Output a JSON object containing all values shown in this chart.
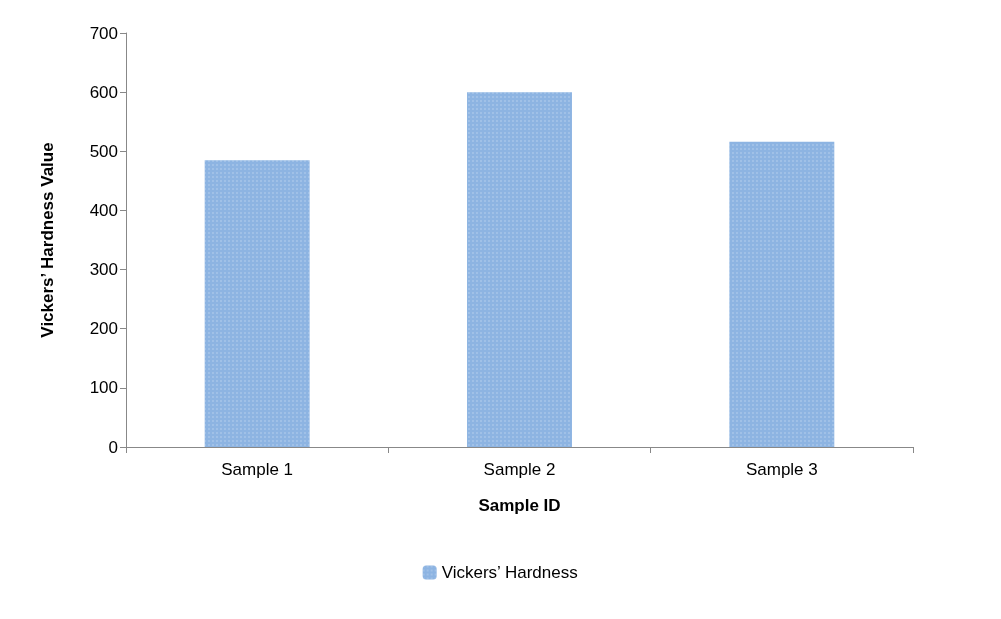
{
  "chart_data": {
    "type": "bar",
    "xlabel": "Sample ID",
    "ylabel": "Vickers’ Hardness Value",
    "categories": [
      "Sample 1",
      "Sample 2",
      "Sample 3"
    ],
    "series": [
      {
        "name": "Vickers’ Hardness",
        "color": "#8db4e2",
        "values": [
          485,
          600,
          516
        ]
      }
    ],
    "ylim": [
      0,
      700
    ],
    "yticks": [
      0,
      100,
      200,
      300,
      400,
      500,
      600,
      700
    ],
    "grid": false,
    "legend": "bottom"
  }
}
